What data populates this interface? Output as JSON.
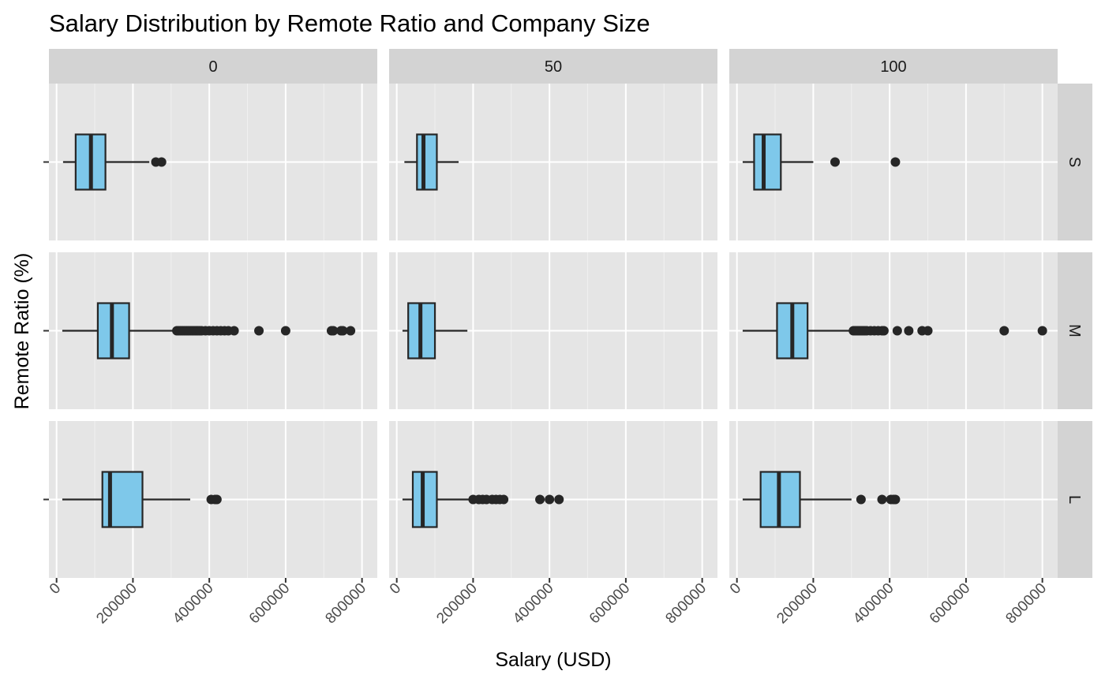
{
  "chart_data": {
    "type": "boxplot",
    "title": "Salary Distribution by Remote Ratio and Company Size",
    "xlabel": "Salary (USD)",
    "ylabel": "Remote Ratio (%)",
    "xlim": [
      -20000,
      840000
    ],
    "x_ticks": [
      0,
      200000,
      400000,
      600000,
      800000
    ],
    "x_tick_labels": [
      "0",
      "200000",
      "400000",
      "600000",
      "800000"
    ],
    "grid": true,
    "facet_columns": [
      "0",
      "50",
      "100"
    ],
    "facet_rows": [
      "S",
      "M",
      "L"
    ],
    "colors": {
      "box_fill": "#7ec8ea",
      "box_outline": "#262626",
      "panel_bg": "#e5e5e5",
      "strip_bg": "#d3d3d3",
      "grid_major": "#ffffff",
      "grid_minor": "#f0f0f0"
    },
    "panels": [
      {
        "col": "0",
        "row": "S",
        "whisker_low": 17000,
        "q1": 50000,
        "median": 90000,
        "q3": 128000,
        "whisker_high": 243000,
        "outliers": [
          260000,
          275000
        ]
      },
      {
        "col": "50",
        "row": "S",
        "whisker_low": 20000,
        "q1": 53000,
        "median": 70000,
        "q3": 105000,
        "whisker_high": 162000,
        "outliers": []
      },
      {
        "col": "100",
        "row": "S",
        "whisker_low": 15000,
        "q1": 45000,
        "median": 70000,
        "q3": 115000,
        "whisker_high": 200000,
        "outliers": [
          257000,
          415000
        ]
      },
      {
        "col": "0",
        "row": "M",
        "whisker_low": 15000,
        "q1": 108000,
        "median": 145000,
        "q3": 190000,
        "whisker_high": 310000,
        "outliers": [
          315000,
          320000,
          325000,
          330000,
          335000,
          340000,
          345000,
          350000,
          355000,
          360000,
          365000,
          370000,
          375000,
          380000,
          390000,
          400000,
          410000,
          420000,
          430000,
          440000,
          450000,
          465000,
          530000,
          600000,
          720000,
          725000,
          745000,
          750000,
          770000
        ]
      },
      {
        "col": "50",
        "row": "M",
        "whisker_low": 15000,
        "q1": 30000,
        "median": 62000,
        "q3": 100000,
        "whisker_high": 185000,
        "outliers": []
      },
      {
        "col": "100",
        "row": "M",
        "whisker_low": 15000,
        "q1": 105000,
        "median": 145000,
        "q3": 185000,
        "whisker_high": 300000,
        "outliers": [
          305000,
          310000,
          315000,
          320000,
          325000,
          330000,
          335000,
          340000,
          350000,
          360000,
          370000,
          380000,
          385000,
          420000,
          450000,
          485000,
          500000,
          700000,
          800000
        ]
      },
      {
        "col": "0",
        "row": "L",
        "whisker_low": 15000,
        "q1": 120000,
        "median": 140000,
        "q3": 225000,
        "whisker_high": 350000,
        "outliers": [
          405000,
          415000,
          420000
        ]
      },
      {
        "col": "50",
        "row": "L",
        "whisker_low": 15000,
        "q1": 42000,
        "median": 68000,
        "q3": 105000,
        "whisker_high": 195000,
        "outliers": [
          200000,
          215000,
          225000,
          235000,
          250000,
          260000,
          270000,
          280000,
          375000,
          400000,
          425000
        ]
      },
      {
        "col": "100",
        "row": "L",
        "whisker_low": 15000,
        "q1": 62000,
        "median": 110000,
        "q3": 165000,
        "whisker_high": 300000,
        "outliers": [
          325000,
          380000,
          403000,
          410000,
          415000
        ]
      }
    ]
  }
}
